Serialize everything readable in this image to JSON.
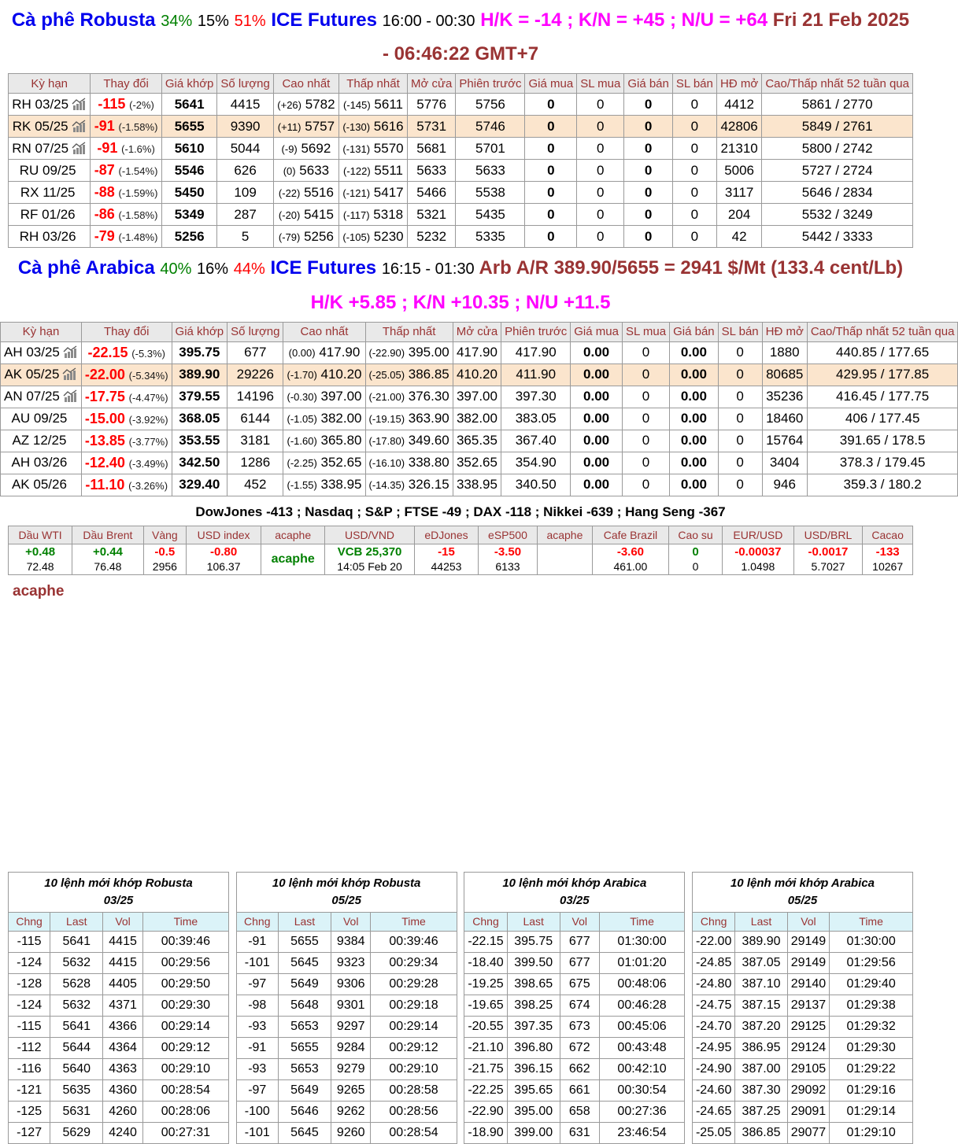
{
  "colors": {
    "title_blue": "#0000ee",
    "up_green": "#008000",
    "down_red": "#ff0000",
    "spread_magenta": "#ff00ff",
    "dark_red": "#993333",
    "highlight_row": "#fbe5cd",
    "table_header_bg": "#e9e9e9",
    "order_header_bg": "#dbf3f8"
  },
  "icons": {
    "chart_icon": "bar-chart-with-trend-line"
  },
  "robusta_header": {
    "title": "Cà phê Robusta",
    "pct_green": "34%",
    "pct_black": "15%",
    "pct_red": "51%",
    "exchange": "ICE Futures",
    "hours": "16:00 - 00:30",
    "spreads": "H/K = -14 ; K/N = +45 ; N/U = +64",
    "datetime": "Fri 21 Feb 2025 - 06:46:22 GMT+7"
  },
  "arabica_header": {
    "title": "Cà phê Arabica",
    "pct_green": "40%",
    "pct_black": "16%",
    "pct_red": "44%",
    "exchange": "ICE Futures",
    "hours": "16:15 - 01:30",
    "arb": "Arb A/R 389.90/5655 = 2941 $/Mt (133.4 cent/Lb)",
    "spreads": "H/K +5.85 ; K/N +10.35 ; N/U +11.5"
  },
  "futures_columns": [
    "Kỳ hạn",
    "Thay đổi",
    "Giá khớp",
    "Số lượng",
    "Cao nhất",
    "Thấp nhất",
    "Mở cửa",
    "Phiên trước",
    "Giá mua",
    "SL mua",
    "Giá bán",
    "SL bán",
    "HĐ mở",
    "Cao/Thấp nhất 52 tuần qua"
  ],
  "robusta_rows": [
    {
      "contract": "RH 03/25",
      "has_chart": true,
      "highlight": false,
      "change": "-115",
      "change_pct": "(-2%)",
      "last": "5641",
      "volume": "4415",
      "high_delta": "(+26)",
      "high": "5782",
      "low_delta": "(-145)",
      "low": "5611",
      "open": "5776",
      "prev": "5756",
      "bid": "0",
      "bid_qty": "0",
      "ask": "0",
      "ask_qty": "0",
      "open_interest": "4412",
      "range_52wk": "5861 / 2770"
    },
    {
      "contract": "RK 05/25",
      "has_chart": true,
      "highlight": true,
      "change": "-91",
      "change_pct": "(-1.58%)",
      "last": "5655",
      "volume": "9390",
      "high_delta": "(+11)",
      "high": "5757",
      "low_delta": "(-130)",
      "low": "5616",
      "open": "5731",
      "prev": "5746",
      "bid": "0",
      "bid_qty": "0",
      "ask": "0",
      "ask_qty": "0",
      "open_interest": "42806",
      "range_52wk": "5849 / 2761"
    },
    {
      "contract": "RN 07/25",
      "has_chart": true,
      "highlight": false,
      "change": "-91",
      "change_pct": "(-1.6%)",
      "last": "5610",
      "volume": "5044",
      "high_delta": "(-9)",
      "high": "5692",
      "low_delta": "(-131)",
      "low": "5570",
      "open": "5681",
      "prev": "5701",
      "bid": "0",
      "bid_qty": "0",
      "ask": "0",
      "ask_qty": "0",
      "open_interest": "21310",
      "range_52wk": "5800 / 2742"
    },
    {
      "contract": "RU 09/25",
      "has_chart": false,
      "highlight": false,
      "change": "-87",
      "change_pct": "(-1.54%)",
      "last": "5546",
      "volume": "626",
      "high_delta": "(0)",
      "high": "5633",
      "low_delta": "(-122)",
      "low": "5511",
      "open": "5633",
      "prev": "5633",
      "bid": "0",
      "bid_qty": "0",
      "ask": "0",
      "ask_qty": "0",
      "open_interest": "5006",
      "range_52wk": "5727 / 2724"
    },
    {
      "contract": "RX 11/25",
      "has_chart": false,
      "highlight": false,
      "change": "-88",
      "change_pct": "(-1.59%)",
      "last": "5450",
      "volume": "109",
      "high_delta": "(-22)",
      "high": "5516",
      "low_delta": "(-121)",
      "low": "5417",
      "open": "5466",
      "prev": "5538",
      "bid": "0",
      "bid_qty": "0",
      "ask": "0",
      "ask_qty": "0",
      "open_interest": "3117",
      "range_52wk": "5646 / 2834"
    },
    {
      "contract": "RF 01/26",
      "has_chart": false,
      "highlight": false,
      "change": "-86",
      "change_pct": "(-1.58%)",
      "last": "5349",
      "volume": "287",
      "high_delta": "(-20)",
      "high": "5415",
      "low_delta": "(-117)",
      "low": "5318",
      "open": "5321",
      "prev": "5435",
      "bid": "0",
      "bid_qty": "0",
      "ask": "0",
      "ask_qty": "0",
      "open_interest": "204",
      "range_52wk": "5532 / 3249"
    },
    {
      "contract": "RH 03/26",
      "has_chart": false,
      "highlight": false,
      "change": "-79",
      "change_pct": "(-1.48%)",
      "last": "5256",
      "volume": "5",
      "high_delta": "(-79)",
      "high": "5256",
      "low_delta": "(-105)",
      "low": "5230",
      "open": "5232",
      "prev": "5335",
      "bid": "0",
      "bid_qty": "0",
      "ask": "0",
      "ask_qty": "0",
      "open_interest": "42",
      "range_52wk": "5442 / 3333"
    }
  ],
  "arabica_rows": [
    {
      "contract": "AH 03/25",
      "has_chart": true,
      "highlight": false,
      "change": "-22.15",
      "change_pct": "(-5.3%)",
      "last": "395.75",
      "volume": "677",
      "high_delta": "(0.00)",
      "high": "417.90",
      "low_delta": "(-22.90)",
      "low": "395.00",
      "open": "417.90",
      "prev": "417.90",
      "bid": "0.00",
      "bid_qty": "0",
      "ask": "0.00",
      "ask_qty": "0",
      "open_interest": "1880",
      "range_52wk": "440.85 / 177.65"
    },
    {
      "contract": "AK 05/25",
      "has_chart": true,
      "highlight": true,
      "change": "-22.00",
      "change_pct": "(-5.34%)",
      "last": "389.90",
      "volume": "29226",
      "high_delta": "(-1.70)",
      "high": "410.20",
      "low_delta": "(-25.05)",
      "low": "386.85",
      "open": "410.20",
      "prev": "411.90",
      "bid": "0.00",
      "bid_qty": "0",
      "ask": "0.00",
      "ask_qty": "0",
      "open_interest": "80685",
      "range_52wk": "429.95 / 177.85"
    },
    {
      "contract": "AN 07/25",
      "has_chart": true,
      "highlight": false,
      "change": "-17.75",
      "change_pct": "(-4.47%)",
      "last": "379.55",
      "volume": "14196",
      "high_delta": "(-0.30)",
      "high": "397.00",
      "low_delta": "(-21.00)",
      "low": "376.30",
      "open": "397.00",
      "prev": "397.30",
      "bid": "0.00",
      "bid_qty": "0",
      "ask": "0.00",
      "ask_qty": "0",
      "open_interest": "35236",
      "range_52wk": "416.45 / 177.75"
    },
    {
      "contract": "AU 09/25",
      "has_chart": false,
      "highlight": false,
      "change": "-15.00",
      "change_pct": "(-3.92%)",
      "last": "368.05",
      "volume": "6144",
      "high_delta": "(-1.05)",
      "high": "382.00",
      "low_delta": "(-19.15)",
      "low": "363.90",
      "open": "382.00",
      "prev": "383.05",
      "bid": "0.00",
      "bid_qty": "0",
      "ask": "0.00",
      "ask_qty": "0",
      "open_interest": "18460",
      "range_52wk": "406 / 177.45"
    },
    {
      "contract": "AZ 12/25",
      "has_chart": false,
      "highlight": false,
      "change": "-13.85",
      "change_pct": "(-3.77%)",
      "last": "353.55",
      "volume": "3181",
      "high_delta": "(-1.60)",
      "high": "365.80",
      "low_delta": "(-17.80)",
      "low": "349.60",
      "open": "365.35",
      "prev": "367.40",
      "bid": "0.00",
      "bid_qty": "0",
      "ask": "0.00",
      "ask_qty": "0",
      "open_interest": "15764",
      "range_52wk": "391.65 / 178.5"
    },
    {
      "contract": "AH 03/26",
      "has_chart": false,
      "highlight": false,
      "change": "-12.40",
      "change_pct": "(-3.49%)",
      "last": "342.50",
      "volume": "1286",
      "high_delta": "(-2.25)",
      "high": "352.65",
      "low_delta": "(-16.10)",
      "low": "338.80",
      "open": "352.65",
      "prev": "354.90",
      "bid": "0.00",
      "bid_qty": "0",
      "ask": "0.00",
      "ask_qty": "0",
      "open_interest": "3404",
      "range_52wk": "378.3 / 179.45"
    },
    {
      "contract": "AK 05/26",
      "has_chart": false,
      "highlight": false,
      "change": "-11.10",
      "change_pct": "(-3.26%)",
      "last": "329.40",
      "volume": "452",
      "high_delta": "(-1.55)",
      "high": "338.95",
      "low_delta": "(-14.35)",
      "low": "326.15",
      "open": "338.95",
      "prev": "340.50",
      "bid": "0.00",
      "bid_qty": "0",
      "ask": "0.00",
      "ask_qty": "0",
      "open_interest": "946",
      "range_52wk": "359.3 / 180.2"
    }
  ],
  "indices_line": "DowJones -413 ; Nasdaq ; S&P ; FTSE -49 ; DAX -118 ; Nikkei -639 ; Hang Seng -367",
  "market_table": {
    "columns": [
      "Dầu WTI",
      "Dầu Brent",
      "Vàng",
      "USD index",
      "acaphe",
      "USD/VND",
      "eDJones",
      "eSP500",
      "acaphe",
      "Cafe Brazil",
      "Cao su",
      "EUR/USD",
      "USD/BRL",
      "Cacao"
    ],
    "cells": [
      {
        "change": "+0.48",
        "dir": "up",
        "value": "72.48"
      },
      {
        "change": "+0.44",
        "dir": "up",
        "value": "76.48"
      },
      {
        "change": "-0.5",
        "dir": "down",
        "value": "2956"
      },
      {
        "change": "-0.80",
        "dir": "down",
        "value": "106.37"
      },
      {
        "change": "acaphe",
        "dir": "up",
        "value": "",
        "single": true
      },
      {
        "change": "VCB 25,370",
        "dir": "up",
        "value": "14:05 Feb 20"
      },
      {
        "change": "-15",
        "dir": "down",
        "value": "44253"
      },
      {
        "change": "-3.50",
        "dir": "down",
        "value": "6133"
      },
      {
        "change": "",
        "dir": "none",
        "value": ""
      },
      {
        "change": "-3.60",
        "dir": "down",
        "value": "461.00"
      },
      {
        "change": "0",
        "dir": "up",
        "value": "0"
      },
      {
        "change": "-0.00037",
        "dir": "down",
        "value": "1.0498"
      },
      {
        "change": "-0.0017",
        "dir": "down",
        "value": "5.7027"
      },
      {
        "change": "-133",
        "dir": "down",
        "value": "10267"
      }
    ]
  },
  "acaphe_label": "acaphe",
  "order_tables": [
    {
      "title": "10 lệnh mới khớp Robusta",
      "subtitle": "03/25",
      "columns": [
        "Chng",
        "Last",
        "Vol",
        "Time"
      ],
      "rows": [
        [
          "-115",
          "5641",
          "4415",
          "00:39:46"
        ],
        [
          "-124",
          "5632",
          "4415",
          "00:29:56"
        ],
        [
          "-128",
          "5628",
          "4405",
          "00:29:50"
        ],
        [
          "-124",
          "5632",
          "4371",
          "00:29:30"
        ],
        [
          "-115",
          "5641",
          "4366",
          "00:29:14"
        ],
        [
          "-112",
          "5644",
          "4364",
          "00:29:12"
        ],
        [
          "-116",
          "5640",
          "4363",
          "00:29:10"
        ],
        [
          "-121",
          "5635",
          "4360",
          "00:28:54"
        ],
        [
          "-125",
          "5631",
          "4260",
          "00:28:06"
        ],
        [
          "-127",
          "5629",
          "4240",
          "00:27:31"
        ]
      ]
    },
    {
      "title": "10 lệnh mới khớp Robusta",
      "subtitle": "05/25",
      "columns": [
        "Chng",
        "Last",
        "Vol",
        "Time"
      ],
      "rows": [
        [
          "-91",
          "5655",
          "9384",
          "00:39:46"
        ],
        [
          "-101",
          "5645",
          "9323",
          "00:29:34"
        ],
        [
          "-97",
          "5649",
          "9306",
          "00:29:28"
        ],
        [
          "-98",
          "5648",
          "9301",
          "00:29:18"
        ],
        [
          "-93",
          "5653",
          "9297",
          "00:29:14"
        ],
        [
          "-91",
          "5655",
          "9284",
          "00:29:12"
        ],
        [
          "-93",
          "5653",
          "9279",
          "00:29:10"
        ],
        [
          "-97",
          "5649",
          "9265",
          "00:28:58"
        ],
        [
          "-100",
          "5646",
          "9262",
          "00:28:56"
        ],
        [
          "-101",
          "5645",
          "9260",
          "00:28:54"
        ]
      ]
    },
    {
      "title": "10 lệnh mới khớp Arabica",
      "subtitle": "03/25",
      "columns": [
        "Chng",
        "Last",
        "Vol",
        "Time"
      ],
      "rows": [
        [
          "-22.15",
          "395.75",
          "677",
          "01:30:00"
        ],
        [
          "-18.40",
          "399.50",
          "677",
          "01:01:20"
        ],
        [
          "-19.25",
          "398.65",
          "675",
          "00:48:06"
        ],
        [
          "-19.65",
          "398.25",
          "674",
          "00:46:28"
        ],
        [
          "-20.55",
          "397.35",
          "673",
          "00:45:06"
        ],
        [
          "-21.10",
          "396.80",
          "672",
          "00:43:48"
        ],
        [
          "-21.75",
          "396.15",
          "662",
          "00:42:10"
        ],
        [
          "-22.25",
          "395.65",
          "661",
          "00:30:54"
        ],
        [
          "-22.90",
          "395.00",
          "658",
          "00:27:36"
        ],
        [
          "-18.90",
          "399.00",
          "631",
          "23:46:54"
        ]
      ]
    },
    {
      "title": "10 lệnh mới khớp Arabica",
      "subtitle": "05/25",
      "columns": [
        "Chng",
        "Last",
        "Vol",
        "Time"
      ],
      "rows": [
        [
          "-22.00",
          "389.90",
          "29149",
          "01:30:00"
        ],
        [
          "-24.85",
          "387.05",
          "29149",
          "01:29:56"
        ],
        [
          "-24.80",
          "387.10",
          "29140",
          "01:29:40"
        ],
        [
          "-24.75",
          "387.15",
          "29137",
          "01:29:38"
        ],
        [
          "-24.70",
          "387.20",
          "29125",
          "01:29:32"
        ],
        [
          "-24.95",
          "386.95",
          "29124",
          "01:29:30"
        ],
        [
          "-24.90",
          "387.00",
          "29105",
          "01:29:22"
        ],
        [
          "-24.60",
          "387.30",
          "29092",
          "01:29:16"
        ],
        [
          "-24.65",
          "387.25",
          "29091",
          "01:29:14"
        ],
        [
          "-25.05",
          "386.85",
          "29077",
          "01:29:10"
        ]
      ]
    }
  ]
}
